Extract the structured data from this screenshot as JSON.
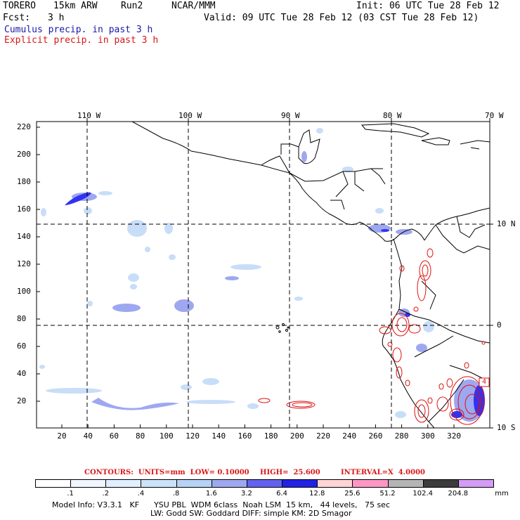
{
  "header": {
    "model": "TORERO",
    "resolution": "15km ARW",
    "run": "Run2",
    "org": "NCAR/MMM",
    "init": "Init: 06 UTC Tue 28 Feb 12",
    "fcst_label": "Fcst:",
    "fcst_value": "3 h",
    "valid": "Valid: 09 UTC Tue 28 Feb 12 (03 CST Tue 28 Feb 12)"
  },
  "fields": {
    "cumulus": "Cumulus precip. in past 3 h",
    "explicit": "Explicit precip. in past 3 h"
  },
  "map": {
    "top_longitudes": [
      "110 W",
      "100 W",
      "90 W",
      "80 W",
      "70 W"
    ],
    "right_latitudes": [
      "10 N",
      "0",
      "10 S"
    ],
    "left_ticks": [
      "220",
      "200",
      "180",
      "160",
      "140",
      "120",
      "100",
      "80",
      "60",
      "40",
      "20"
    ],
    "bottom_ticks": [
      "20",
      "40",
      "60",
      "80",
      "100",
      "120",
      "140",
      "160",
      "180",
      "200",
      "220",
      "240",
      "260",
      "280",
      "300",
      "320"
    ],
    "high_marker": "4",
    "colors": {
      "cumulus": "#3c3cff",
      "explicit": "#e01010",
      "land": "#000000"
    }
  },
  "contours_info": {
    "units": "CONTOURS:  UNITS=mm  LOW= 0.10000",
    "high": "HIGH=  25.600",
    "interval": "INTERVAL=X  4.0000"
  },
  "legend": {
    "labels": [
      ".1",
      ".2",
      ".4",
      ".8",
      "1.6",
      "3.2",
      "6.4",
      "12.8",
      "25.6",
      "51.2",
      "102.4",
      "204.8"
    ],
    "unit": "mm",
    "colors": [
      "#ffffff",
      "#f0f6ff",
      "#e2efff",
      "#cce2fa",
      "#b6d2f5",
      "#9ea8f0",
      "#6262ee",
      "#2222e6",
      "#ffd4d4",
      "#ff96c4",
      "#b4b4b4",
      "#3c3c3c",
      "#d49cf4"
    ]
  },
  "footer": {
    "line1": "Model Info: V3.3.1   KF      YSU PBL  WDM 6class  Noah LSM  15 km,   44 levels,   75 sec",
    "line2": "LW: Godd SW: Goddard DIFF: simple KM: 2D Smagor"
  }
}
